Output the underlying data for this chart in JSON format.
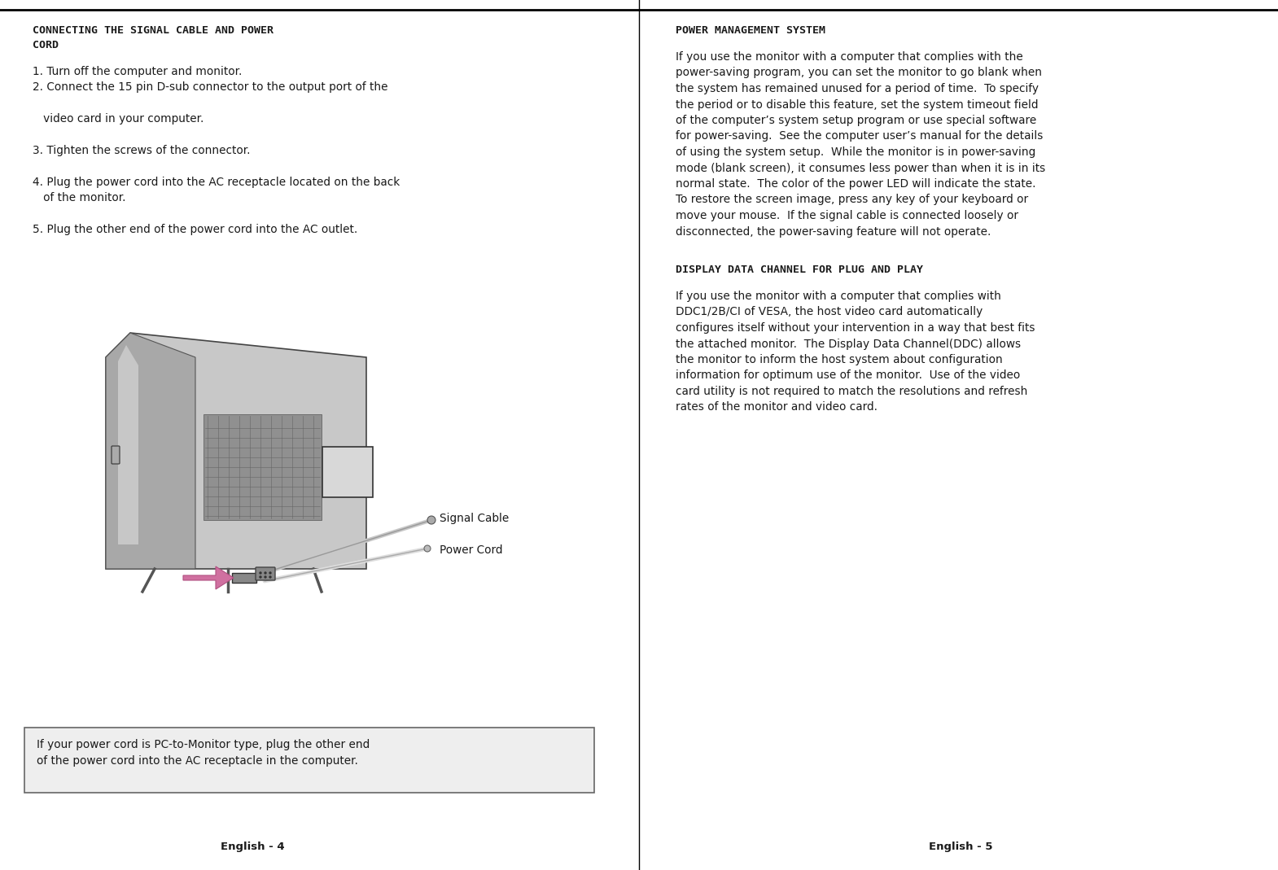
{
  "bg_color": "#ffffff",
  "text_color": "#1a1a1a",
  "divider_color": "#000000",
  "left_title_line1": "CONNECTING THE SIGNAL CABLE AND POWER",
  "left_title_line2": "CORD",
  "left_items": [
    [
      "1. Turn off the computer and monitor.",
      false
    ],
    [
      "2. Connect the 15 pin D-sub connector to the output port of the",
      false
    ],
    [
      "   video card in your computer.",
      false
    ],
    [
      "3. Tighten the screws of the connector.",
      false
    ],
    [
      "4. Plug the power cord into the AC receptacle located on the back",
      false
    ],
    [
      "   of the monitor.",
      false
    ],
    [
      "5. Plug the other end of the power cord into the AC outlet.",
      false
    ]
  ],
  "signal_cable_label": "Signal Cable",
  "power_cord_label": "Power Cord",
  "note_text_line1": "If your power cord is PC-to-Monitor type, plug the other end",
  "note_text_line2": "of the power cord into the AC receptacle in the computer.",
  "right_title1": "POWER MANAGEMENT SYSTEM",
  "right_body1_lines": [
    "If you use the monitor with a computer that complies with the",
    "power-saving program, you can set the monitor to go blank when",
    "the system has remained unused for a period of time.  To specify",
    "the period or to disable this feature, set the system timeout field",
    "of the computer’s system setup program or use special software",
    "for power-saving.  See the computer user’s manual for the details",
    "of using the system setup.  While the monitor is in power-saving",
    "mode (blank screen), it consumes less power than when it is in its",
    "normal state.  The color of the power LED will indicate the state.",
    "To restore the screen image, press any key of your keyboard or",
    "move your mouse.  If the signal cable is connected loosely or",
    "disconnected, the power-saving feature will not operate."
  ],
  "right_title2": "DISPLAY DATA CHANNEL FOR PLUG AND PLAY",
  "right_body2_lines": [
    "If you use the monitor with a computer that complies with",
    "DDC1/2B/CI of VESA, the host video card automatically",
    "configures itself without your intervention in a way that best fits",
    "the attached monitor.  The Display Data Channel(DDC) allows",
    "the monitor to inform the host system about configuration",
    "information for optimum use of the monitor.  Use of the video",
    "card utility is not required to match the resolutions and refresh",
    "rates of the monitor and video card."
  ],
  "footer_left": "English - 4",
  "footer_right": "English - 5",
  "title_fontsize": 9.5,
  "body_fontsize": 9.8,
  "footer_fontsize": 9.5
}
